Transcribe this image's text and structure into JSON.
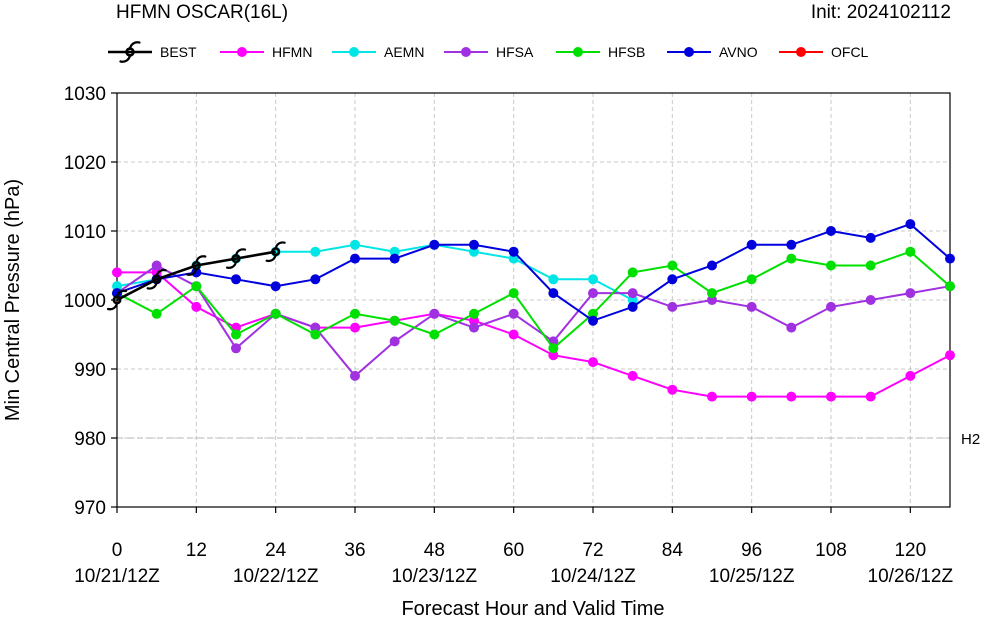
{
  "chart_data": {
    "type": "line",
    "title": "HFMN OSCAR(16L)",
    "init_label": "Init: 2024102112",
    "xlabel": "Forecast Hour and Valid Time",
    "ylabel": "Min Central Pressure (hPa)",
    "xlim": [
      0,
      126
    ],
    "ylim": [
      970,
      1030
    ],
    "x_ticks": [
      0,
      12,
      24,
      36,
      48,
      60,
      72,
      84,
      96,
      108,
      120
    ],
    "x_tick_labels": [
      "0",
      "12",
      "24",
      "36",
      "48",
      "60",
      "72",
      "84",
      "96",
      "108",
      "120"
    ],
    "date_ticks": [
      {
        "x": 0,
        "label": "10/21/12Z"
      },
      {
        "x": 24,
        "label": "10/22/12Z"
      },
      {
        "x": 48,
        "label": "10/23/12Z"
      },
      {
        "x": 72,
        "label": "10/24/12Z"
      },
      {
        "x": 96,
        "label": "10/25/12Z"
      },
      {
        "x": 120,
        "label": "10/26/12Z"
      }
    ],
    "y_ticks": [
      970,
      980,
      990,
      1000,
      1010,
      1020,
      1030
    ],
    "y_tick_labels": [
      "970",
      "980",
      "990",
      "1000",
      "1010",
      "1020",
      "1030"
    ],
    "grid": true,
    "legend_position": "top",
    "reference_lines": [
      {
        "y": 980,
        "label": "H2"
      }
    ],
    "series": [
      {
        "name": "BEST",
        "color": "#000000",
        "marker": "hurricane-symbol",
        "x": [
          0,
          6,
          12,
          18,
          24
        ],
        "y": [
          1000,
          1003,
          1005,
          1006,
          1007
        ]
      },
      {
        "name": "HFMN",
        "color": "#ff00ff",
        "marker": "circle",
        "x": [
          0,
          6,
          12,
          18,
          24,
          30,
          36,
          42,
          48,
          54,
          60,
          66,
          72,
          78,
          84,
          90,
          96,
          102,
          108,
          114,
          120,
          126
        ],
        "y": [
          1004,
          1004,
          999,
          996,
          998,
          996,
          996,
          997,
          998,
          997,
          995,
          992,
          991,
          989,
          987,
          986,
          986,
          986,
          986,
          986,
          989,
          992
        ]
      },
      {
        "name": "AEMN",
        "color": "#00e5e5",
        "marker": "circle",
        "x": [
          0,
          6,
          12,
          18,
          24,
          30,
          36,
          42,
          48,
          54,
          60,
          66,
          72,
          78
        ],
        "y": [
          1002,
          1003,
          1005,
          1006,
          1007,
          1007,
          1008,
          1007,
          1008,
          1007,
          1006,
          1003,
          1003,
          1000
        ]
      },
      {
        "name": "HFSA",
        "color": "#a030e0",
        "marker": "circle",
        "x": [
          0,
          6,
          12,
          18,
          24,
          30,
          36,
          42,
          48,
          54,
          60,
          66,
          72,
          78,
          84,
          90,
          96,
          102,
          108,
          114,
          120,
          126
        ],
        "y": [
          1001,
          1005,
          1002,
          993,
          998,
          996,
          989,
          994,
          998,
          996,
          998,
          994,
          1001,
          1001,
          999,
          1000,
          999,
          996,
          999,
          1000,
          1001,
          1002
        ]
      },
      {
        "name": "HFSB",
        "color": "#00e000",
        "marker": "circle",
        "x": [
          0,
          6,
          12,
          18,
          24,
          30,
          36,
          42,
          48,
          54,
          60,
          66,
          72,
          78,
          84,
          90,
          96,
          102,
          108,
          114,
          120,
          126
        ],
        "y": [
          1001,
          998,
          1002,
          995,
          998,
          995,
          998,
          997,
          995,
          998,
          1001,
          993,
          998,
          1004,
          1005,
          1001,
          1003,
          1006,
          1005,
          1005,
          1007,
          1002
        ]
      },
      {
        "name": "AVNO",
        "color": "#0000dd",
        "marker": "circle",
        "x": [
          0,
          6,
          12,
          18,
          24,
          30,
          36,
          42,
          48,
          54,
          60,
          66,
          72,
          78,
          84,
          90,
          96,
          102,
          108,
          114,
          120,
          126
        ],
        "y": [
          1001,
          1003,
          1004,
          1003,
          1002,
          1003,
          1006,
          1006,
          1008,
          1008,
          1007,
          1001,
          997,
          999,
          1003,
          1005,
          1008,
          1008,
          1010,
          1009,
          1011,
          1006
        ]
      },
      {
        "name": "OFCL",
        "color": "#ff0000",
        "marker": "circle",
        "x": [],
        "y": []
      }
    ]
  }
}
